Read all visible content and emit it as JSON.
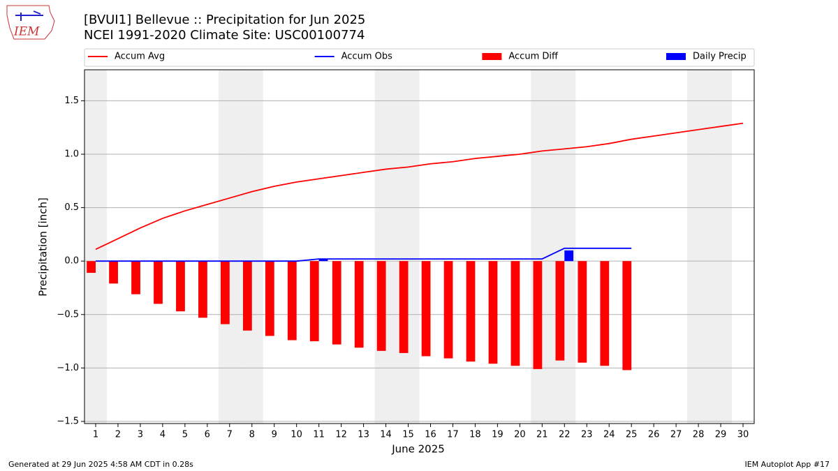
{
  "chart_data": {
    "type": "precip_accum",
    "title": "[BVUI1] Bellevue :: Precipitation for Jun 2025",
    "subtitle": "NCEI 1991-2020 Climate Site: USC00100774",
    "logo_text": "IEM",
    "x_label": "June 2025",
    "y_label": "Precipitation [inch]",
    "footer_left": "Generated at 29 Jun 2025 4:58 AM CDT in 0.28s",
    "footer_right": "IEM Autoplot App #17",
    "x": [
      1,
      2,
      3,
      4,
      5,
      6,
      7,
      8,
      9,
      10,
      11,
      12,
      13,
      14,
      15,
      16,
      17,
      18,
      19,
      20,
      21,
      22,
      23,
      24,
      25,
      26,
      27,
      28,
      29,
      30
    ],
    "xlim": [
      0.5,
      30.5
    ],
    "xticks": [
      1,
      2,
      3,
      4,
      5,
      6,
      7,
      8,
      9,
      10,
      11,
      12,
      13,
      14,
      15,
      16,
      17,
      18,
      19,
      20,
      21,
      22,
      23,
      24,
      25,
      26,
      27,
      28,
      29,
      30
    ],
    "ylim": [
      -1.52,
      1.79
    ],
    "yticks": [
      {
        "value": -1.5,
        "label": "−1.5"
      },
      {
        "value": -1.0,
        "label": "−1.0"
      },
      {
        "value": -0.5,
        "label": "−0.5"
      },
      {
        "value": 0.0,
        "label": "0.0"
      },
      0.5,
      {
        "value": 1.0,
        "label": "1.0"
      },
      1.5
    ],
    "grid": true,
    "shaded_days": [
      1,
      7,
      8,
      14,
      15,
      21,
      22,
      28,
      29
    ],
    "legend": "top",
    "series": [
      {
        "name": "Accum Avg",
        "kind": "line",
        "color": "#ff0000",
        "values": [
          0.11,
          0.21,
          0.31,
          0.4,
          0.47,
          0.53,
          0.59,
          0.65,
          0.7,
          0.74,
          0.77,
          0.8,
          0.83,
          0.86,
          0.88,
          0.91,
          0.93,
          0.96,
          0.98,
          1.0,
          1.03,
          1.05,
          1.07,
          1.1,
          1.14,
          1.17,
          1.2,
          1.23,
          1.26,
          1.29
        ]
      },
      {
        "name": "Accum Obs",
        "kind": "line",
        "color": "#0000ff",
        "values": [
          0,
          0,
          0,
          0,
          0,
          0,
          0,
          0,
          0,
          0,
          0.02,
          0.02,
          0.02,
          0.02,
          0.02,
          0.02,
          0.02,
          0.02,
          0.02,
          0.02,
          0.02,
          0.12,
          0.12,
          0.12,
          0.12,
          null,
          null,
          null,
          null,
          null
        ]
      },
      {
        "name": "Accum Diff",
        "kind": "bar",
        "color": "#ff0000",
        "values": [
          -0.11,
          -0.21,
          -0.31,
          -0.4,
          -0.47,
          -0.53,
          -0.59,
          -0.65,
          -0.7,
          -0.74,
          -0.75,
          -0.78,
          -0.81,
          -0.84,
          -0.86,
          -0.89,
          -0.91,
          -0.94,
          -0.96,
          -0.98,
          -1.01,
          -0.93,
          -0.95,
          -0.98,
          -1.02,
          null,
          null,
          null,
          null,
          null
        ]
      },
      {
        "name": "Daily Precip",
        "kind": "bar",
        "color": "#0000ff",
        "values": [
          0,
          0,
          0,
          0,
          0,
          0,
          0,
          0,
          0,
          0,
          0.02,
          0,
          0,
          0,
          0,
          0,
          0,
          0,
          0,
          0,
          0,
          0.1,
          0,
          0,
          0,
          null,
          null,
          null,
          null,
          null
        ]
      }
    ]
  }
}
